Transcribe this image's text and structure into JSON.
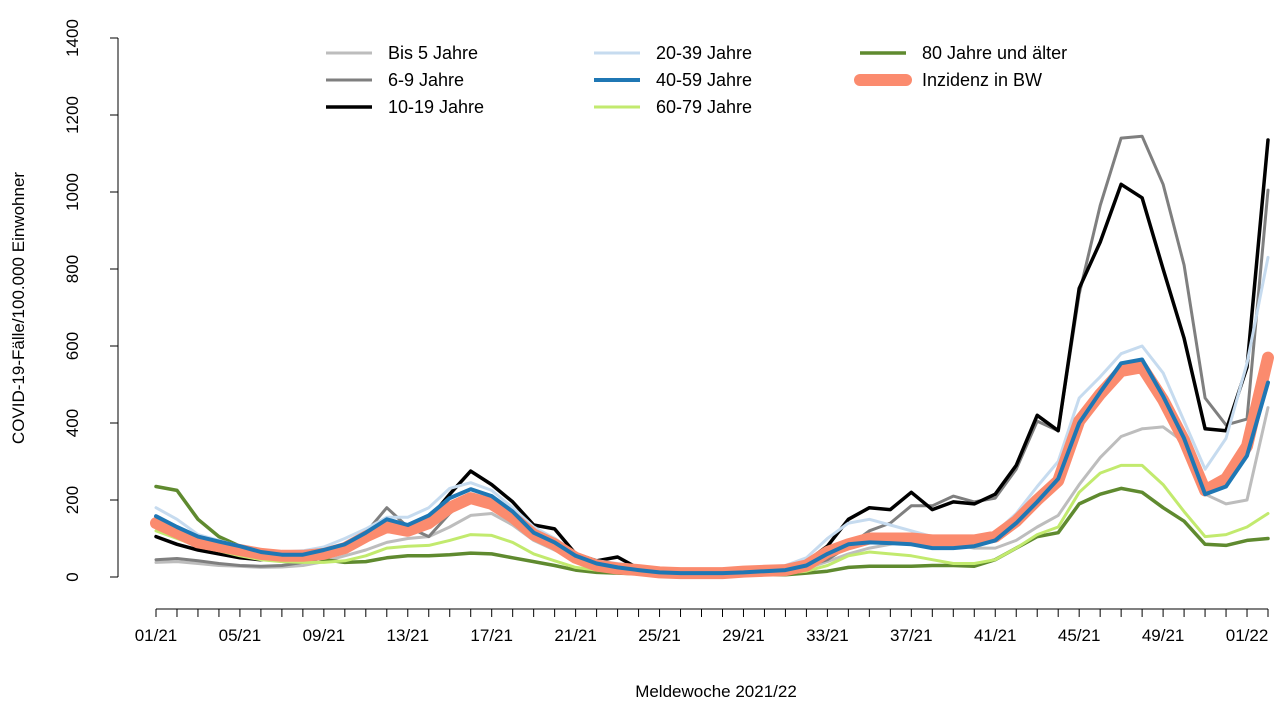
{
  "chart_data": {
    "type": "line",
    "title": "",
    "xlabel": "Meldewoche 2021/22",
    "ylabel": "COVID-19-Fälle/100.000 Einwohner",
    "ylim": [
      0,
      1400
    ],
    "yticks": [
      0,
      200,
      400,
      600,
      800,
      1000,
      1200,
      1400
    ],
    "x": [
      "01/21",
      "02/21",
      "03/21",
      "04/21",
      "05/21",
      "06/21",
      "07/21",
      "08/21",
      "09/21",
      "10/21",
      "11/21",
      "12/21",
      "13/21",
      "14/21",
      "15/21",
      "16/21",
      "17/21",
      "18/21",
      "19/21",
      "20/21",
      "21/21",
      "22/21",
      "23/21",
      "24/21",
      "25/21",
      "26/21",
      "27/21",
      "28/21",
      "29/21",
      "30/21",
      "31/21",
      "32/21",
      "33/21",
      "34/21",
      "35/21",
      "36/21",
      "37/21",
      "38/21",
      "39/21",
      "40/21",
      "41/21",
      "42/21",
      "43/21",
      "44/21",
      "45/21",
      "46/21",
      "47/21",
      "48/21",
      "49/21",
      "50/21",
      "51/21",
      "52/21",
      "01/22",
      "02/22"
    ],
    "xtick_labels": [
      "01/21",
      "05/21",
      "09/21",
      "13/21",
      "17/21",
      "21/21",
      "25/21",
      "29/21",
      "33/21",
      "37/21",
      "41/21",
      "45/21",
      "49/21",
      "01/22"
    ],
    "grid": false,
    "legend_position": "top",
    "series": [
      {
        "name": "Bis 5 Jahre",
        "color": "#bdbdbd",
        "width": 3,
        "values": [
          38,
          40,
          35,
          30,
          28,
          25,
          26,
          30,
          40,
          55,
          70,
          90,
          100,
          105,
          130,
          160,
          165,
          135,
          95,
          70,
          45,
          35,
          25,
          18,
          12,
          10,
          10,
          10,
          12,
          12,
          15,
          22,
          40,
          60,
          75,
          85,
          95,
          95,
          85,
          75,
          75,
          95,
          130,
          160,
          240,
          310,
          365,
          385,
          390,
          350,
          215,
          190,
          200,
          440
        ]
      },
      {
        "name": "6-9 Jahre",
        "color": "#7f7f7f",
        "width": 3,
        "values": [
          45,
          48,
          42,
          35,
          30,
          28,
          30,
          38,
          50,
          75,
          115,
          180,
          130,
          105,
          165,
          210,
          200,
          170,
          125,
          100,
          60,
          40,
          28,
          20,
          15,
          12,
          12,
          12,
          14,
          16,
          18,
          28,
          45,
          80,
          120,
          140,
          185,
          185,
          210,
          195,
          205,
          280,
          405,
          380,
          735,
          965,
          1140,
          1145,
          1020,
          810,
          465,
          395,
          410,
          1005
        ]
      },
      {
        "name": "10-19 Jahre",
        "color": "#000000",
        "width": 3.5,
        "values": [
          105,
          85,
          70,
          60,
          50,
          45,
          45,
          48,
          55,
          75,
          110,
          150,
          130,
          150,
          215,
          275,
          240,
          195,
          135,
          125,
          60,
          42,
          52,
          22,
          18,
          15,
          15,
          15,
          18,
          20,
          22,
          40,
          80,
          150,
          180,
          175,
          220,
          175,
          195,
          190,
          215,
          290,
          420,
          380,
          750,
          870,
          1020,
          985,
          800,
          620,
          385,
          380,
          545,
          1135
        ]
      },
      {
        "name": "20-39 Jahre",
        "color": "#c6dbef",
        "width": 3,
        "values": [
          180,
          150,
          110,
          95,
          80,
          70,
          65,
          68,
          78,
          100,
          125,
          155,
          155,
          180,
          230,
          245,
          225,
          180,
          130,
          100,
          60,
          42,
          35,
          28,
          22,
          18,
          18,
          18,
          20,
          24,
          30,
          50,
          100,
          140,
          150,
          135,
          120,
          105,
          105,
          105,
          115,
          165,
          235,
          300,
          465,
          520,
          580,
          600,
          530,
          405,
          280,
          360,
          555,
          830
        ]
      },
      {
        "name": "40-59 Jahre",
        "color": "#1f77b4",
        "width": 4,
        "values": [
          158,
          130,
          105,
          92,
          80,
          65,
          58,
          58,
          70,
          85,
          115,
          150,
          135,
          160,
          205,
          228,
          210,
          170,
          115,
          90,
          55,
          35,
          25,
          18,
          12,
          10,
          10,
          10,
          12,
          15,
          18,
          30,
          60,
          85,
          90,
          88,
          85,
          75,
          75,
          80,
          95,
          140,
          195,
          255,
          400,
          480,
          555,
          565,
          470,
          360,
          215,
          235,
          315,
          505
        ]
      },
      {
        "name": "60-79 Jahre",
        "color": "#c2ea6e",
        "width": 3,
        "values": [
          120,
          100,
          80,
          68,
          55,
          45,
          40,
          38,
          38,
          42,
          55,
          75,
          80,
          82,
          95,
          110,
          108,
          90,
          60,
          42,
          25,
          18,
          15,
          12,
          8,
          8,
          8,
          8,
          8,
          10,
          10,
          15,
          30,
          55,
          65,
          60,
          55,
          45,
          35,
          35,
          45,
          75,
          110,
          130,
          220,
          270,
          290,
          290,
          240,
          170,
          105,
          110,
          130,
          165
        ]
      },
      {
        "name": "80 Jahre und älter",
        "color": "#5f8a2f",
        "width": 3.5,
        "values": [
          235,
          225,
          150,
          105,
          80,
          68,
          60,
          55,
          45,
          38,
          40,
          50,
          55,
          55,
          58,
          62,
          60,
          50,
          40,
          30,
          18,
          12,
          10,
          8,
          5,
          5,
          5,
          5,
          5,
          6,
          6,
          10,
          15,
          25,
          28,
          28,
          28,
          30,
          30,
          28,
          45,
          75,
          105,
          115,
          190,
          215,
          230,
          220,
          180,
          145,
          85,
          82,
          95,
          100
        ]
      },
      {
        "name": "Inzidenz in BW",
        "color": "#fb8b6e",
        "width": 12,
        "values": [
          140,
          115,
          90,
          80,
          70,
          60,
          55,
          55,
          60,
          75,
          105,
          130,
          120,
          140,
          180,
          205,
          190,
          155,
          110,
          85,
          50,
          30,
          22,
          18,
          12,
          10,
          10,
          10,
          14,
          16,
          18,
          30,
          65,
          85,
          100,
          100,
          100,
          95,
          95,
          95,
          105,
          145,
          200,
          250,
          405,
          475,
          535,
          545,
          460,
          355,
          225,
          255,
          340,
          570
        ]
      }
    ]
  }
}
